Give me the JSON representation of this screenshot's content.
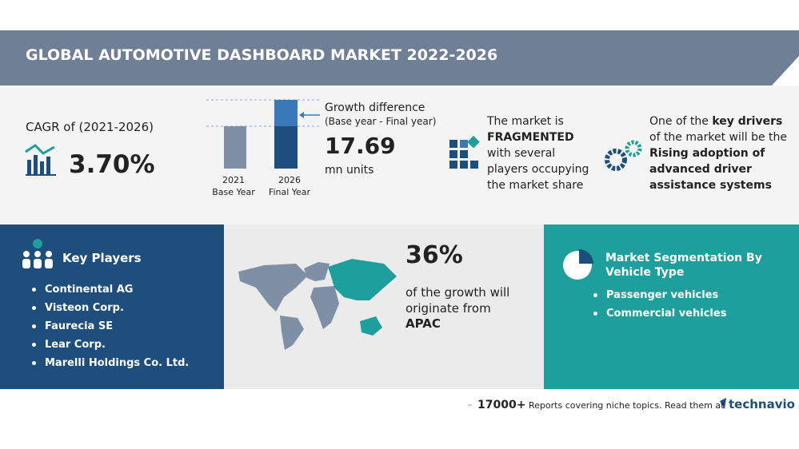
{
  "header": {
    "title": "GLOBAL AUTOMOTIVE DASHBOARD MARKET 2022-2026"
  },
  "cagr": {
    "label": "CAGR of (2021-2026)",
    "value": "3.70%"
  },
  "growth": {
    "bars": [
      {
        "year": "2021",
        "label": "Base Year"
      },
      {
        "year": "2026",
        "label": "Final Year"
      }
    ],
    "title": "Growth difference",
    "subtitle": "(Base year - Final year)",
    "value": "17.69",
    "unit": "mn units"
  },
  "market": {
    "line1": "The market is",
    "bold": "FRAGMENTED",
    "line2": "with several",
    "line3": "players occupying",
    "line4": "the market share"
  },
  "drivers": {
    "text1": "One of the ",
    "bold1": "key drivers",
    "text2": " of the market will be the ",
    "bold2": "Rising adoption of advanced driver assistance systems"
  },
  "key_players": {
    "title": "Key Players",
    "items": [
      "Continental AG",
      "Visteon Corp.",
      "Faurecia SE",
      "Lear Corp.",
      "Marelli Holdings Co. Ltd."
    ]
  },
  "apac": {
    "share": "36%",
    "text": "of the growth will originate from",
    "region": "APAC"
  },
  "segmentation": {
    "title": "Market Segmentation By Vehicle Type",
    "items": [
      "Passenger vehicles",
      "Commercial vehicles"
    ]
  },
  "footer": {
    "count": "17000+",
    "text": "Reports covering niche topics. Read them at",
    "brand": "technavio"
  }
}
